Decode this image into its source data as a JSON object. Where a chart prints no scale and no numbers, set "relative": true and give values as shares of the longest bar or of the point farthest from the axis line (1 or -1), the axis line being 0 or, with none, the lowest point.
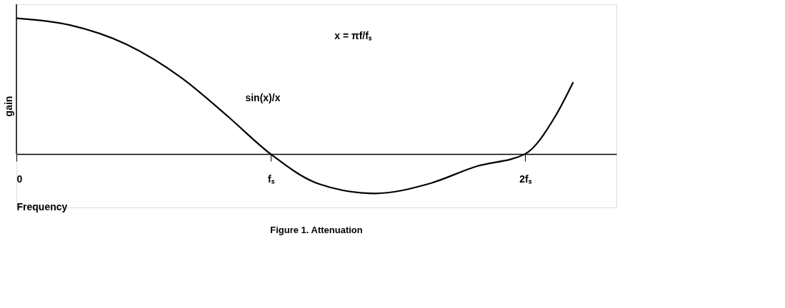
{
  "chart_data": {
    "type": "line",
    "relative": true,
    "title": "Figure 1. Attenuation",
    "xlabel": "Frequency",
    "ylabel": "gain",
    "x": [
      0,
      0.21,
      0.43,
      0.65,
      0.83,
      1,
      1.19,
      1.41,
      1.62,
      1.81,
      2,
      2.12,
      2.19
    ],
    "series": [
      {
        "color": "#000000",
        "values": [
          1,
          0.95,
          0.81,
          0.56,
          0.28,
          0,
          -0.22,
          -0.29,
          -0.22,
          -0.09,
          0,
          0.28,
          0.53
        ]
      }
    ],
    "xlim": [
      0,
      2.36
    ],
    "xticks": [
      {
        "value": 0,
        "label": "0"
      },
      {
        "value": 1,
        "label": "fₛ"
      },
      {
        "value": 2,
        "label": "2fₛ"
      }
    ],
    "annotations": [
      "x = πf/fₛ",
      "sin(x)/x"
    ],
    "grid": false,
    "marker": "none",
    "line_style": "solid"
  }
}
